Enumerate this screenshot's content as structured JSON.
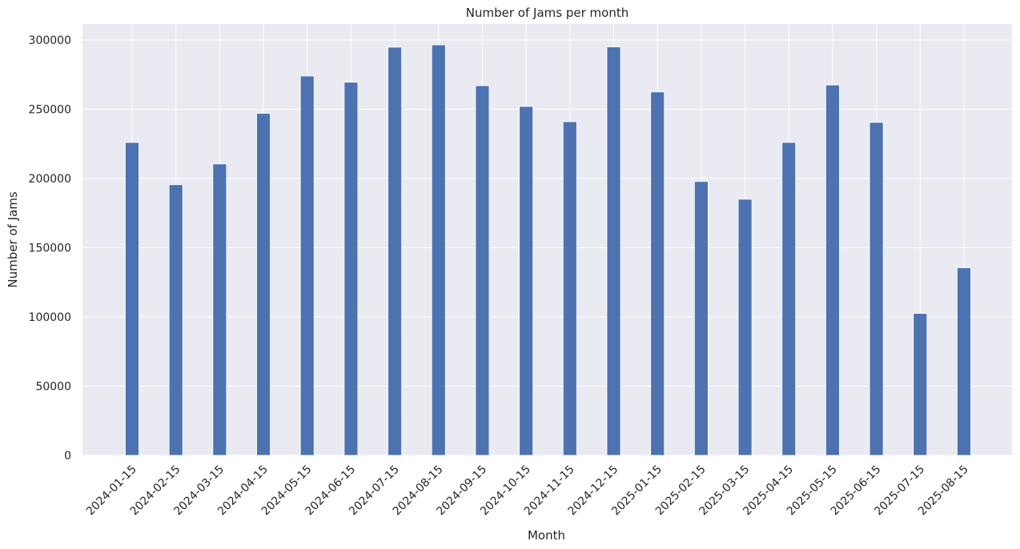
{
  "chart_data": {
    "type": "bar",
    "title": "Number of Jams per month",
    "xlabel": "Month",
    "ylabel": "Number of Jams",
    "categories": [
      "2024-01-15",
      "2024-02-15",
      "2024-03-15",
      "2024-04-15",
      "2024-05-15",
      "2024-06-15",
      "2024-07-15",
      "2024-08-15",
      "2024-09-15",
      "2024-10-15",
      "2024-11-15",
      "2024-12-15",
      "2025-01-15",
      "2025-02-15",
      "2025-03-15",
      "2025-04-15",
      "2025-05-15",
      "2025-06-15",
      "2025-07-15",
      "2025-08-15"
    ],
    "values": [
      226000,
      195500,
      210500,
      247000,
      274000,
      269500,
      294800,
      296500,
      267000,
      252000,
      241000,
      295000,
      262500,
      197800,
      185000,
      226000,
      267500,
      240500,
      102500,
      135500
    ],
    "yticks": [
      0,
      50000,
      100000,
      150000,
      200000,
      250000,
      300000
    ],
    "ylim": [
      0,
      310000
    ],
    "grid": true,
    "legend": "none",
    "colors": {
      "bar": "#4c72b0",
      "background": "#eaeaf2",
      "grid": "#ffffff"
    }
  }
}
